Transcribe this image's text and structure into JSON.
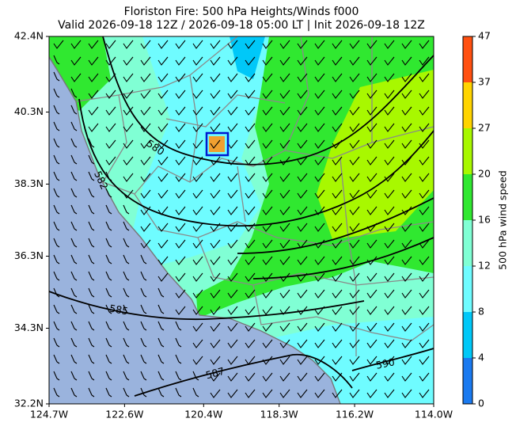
{
  "chart_data": {
    "type": "contour-map",
    "title": "Floriston Fire: 500 hPa Heights/Winds f000",
    "subtitle": "Valid 2026-09-18 12Z / 2026-09-18 05:00 LT | Init 2026-09-18 12Z",
    "xlim": [
      -124.7,
      -114.0
    ],
    "ylim": [
      32.2,
      42.4
    ],
    "xticks": [
      {
        "value": -124.7,
        "label": "124.7W"
      },
      {
        "value": -122.6,
        "label": "122.6W"
      },
      {
        "value": -120.4,
        "label": "120.4W"
      },
      {
        "value": -118.3,
        "label": "118.3W"
      },
      {
        "value": -116.2,
        "label": "116.2W"
      },
      {
        "value": -114.0,
        "label": "114.0W"
      }
    ],
    "yticks": [
      {
        "value": 32.2,
        "label": "32.2N"
      },
      {
        "value": 34.3,
        "label": "34.3N"
      },
      {
        "value": 36.3,
        "label": "36.3N"
      },
      {
        "value": 38.3,
        "label": "38.3N"
      },
      {
        "value": 40.3,
        "label": "40.3N"
      },
      {
        "value": 42.4,
        "label": "42.4N"
      }
    ],
    "colorbar": {
      "label": "500 hPa wind speed",
      "ticks": [
        0,
        4,
        8,
        12,
        16,
        20,
        27,
        37,
        47
      ],
      "colors": [
        "#1a7af0",
        "#00c8f8",
        "#6ffcff",
        "#80ffd4",
        "#30e830",
        "#a8f800",
        "#ffd400",
        "#ff5010"
      ]
    },
    "contour_labels": [
      "580",
      "582",
      "585",
      "587",
      "590"
    ]
  }
}
